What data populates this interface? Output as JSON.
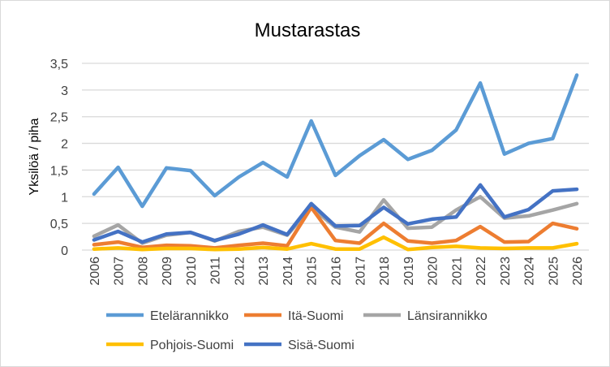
{
  "chart_data": {
    "type": "line",
    "title": "Mustarastas",
    "xlabel": "",
    "ylabel": "Yksilöä / piha",
    "ylim": [
      0,
      3.5
    ],
    "yticks": [
      "0",
      "0,5",
      "1",
      "1,5",
      "2",
      "2,5",
      "3",
      "3,5"
    ],
    "ytick_values": [
      0,
      0.5,
      1,
      1.5,
      2,
      2.5,
      3,
      3.5
    ],
    "grid": true,
    "legend": "bottom",
    "categories": [
      "2006",
      "2007",
      "2008",
      "2009",
      "2010",
      "2011",
      "2012",
      "2013",
      "2014",
      "2015",
      "2016",
      "2017",
      "2018",
      "2019",
      "2020",
      "2021",
      "2022",
      "2023",
      "2024",
      "2025",
      "2026"
    ],
    "series": [
      {
        "name": "Länsirannikko",
        "color": "#a5a5a5",
        "values": [
          0.26,
          0.47,
          0.13,
          0.28,
          0.33,
          0.17,
          0.35,
          0.43,
          0.28,
          0.8,
          0.43,
          0.34,
          0.94,
          0.41,
          0.43,
          0.75,
          1.0,
          0.6,
          0.64,
          0.75,
          0.87
        ]
      },
      {
        "name": "Itä-Suomi",
        "color": "#ed7d31",
        "values": [
          0.1,
          0.15,
          0.05,
          0.09,
          0.08,
          0.04,
          0.09,
          0.13,
          0.08,
          0.8,
          0.18,
          0.13,
          0.5,
          0.17,
          0.13,
          0.18,
          0.44,
          0.15,
          0.16,
          0.5,
          0.4
        ]
      },
      {
        "name": "Pohjois-Suomi",
        "color": "#ffc000",
        "values": [
          0.02,
          0.04,
          0.01,
          0.03,
          0.03,
          0.01,
          0.02,
          0.05,
          0.02,
          0.12,
          0.02,
          0.02,
          0.24,
          0.01,
          0.05,
          0.07,
          0.04,
          0.03,
          0.04,
          0.04,
          0.12
        ]
      },
      {
        "name": "Sisä-Suomi",
        "color": "#4472c4",
        "values": [
          0.19,
          0.35,
          0.15,
          0.3,
          0.33,
          0.18,
          0.3,
          0.47,
          0.29,
          0.87,
          0.45,
          0.46,
          0.8,
          0.49,
          0.58,
          0.62,
          1.22,
          0.62,
          0.76,
          1.11,
          1.14
        ]
      },
      {
        "name": "Etelärannikko",
        "color": "#5b9bd5",
        "values": [
          1.05,
          1.55,
          0.82,
          1.54,
          1.49,
          1.02,
          1.37,
          1.64,
          1.37,
          2.42,
          1.4,
          1.77,
          2.07,
          1.7,
          1.87,
          2.25,
          3.13,
          1.8,
          2.0,
          2.09,
          3.28
        ]
      }
    ],
    "legend_order": [
      "Etelärannikko",
      "Itä-Suomi",
      "Länsirannikko",
      "Pohjois-Suomi",
      "Sisä-Suomi"
    ]
  }
}
